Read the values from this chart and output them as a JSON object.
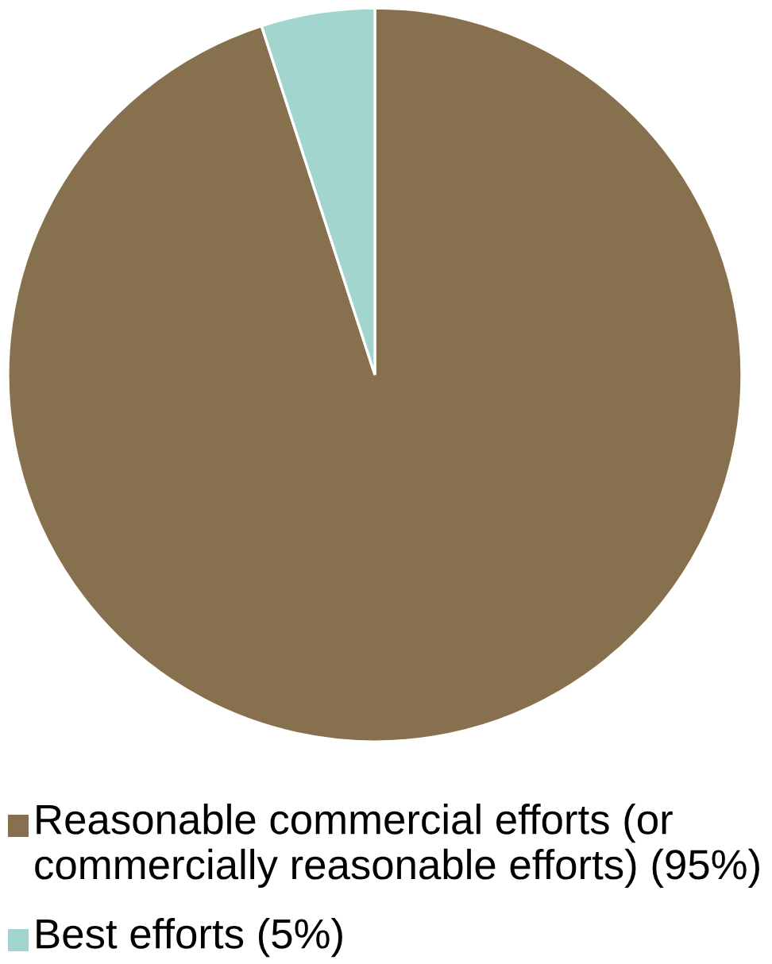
{
  "chart_data": {
    "type": "pie",
    "categories": [
      "Reasonable commercial efforts (or commercially reasonable efforts) (95%)",
      "Best efforts (5%)"
    ],
    "values": [
      95,
      5
    ],
    "colors": [
      "#87704e",
      "#a3d5cf"
    ],
    "legend": "bottom"
  }
}
